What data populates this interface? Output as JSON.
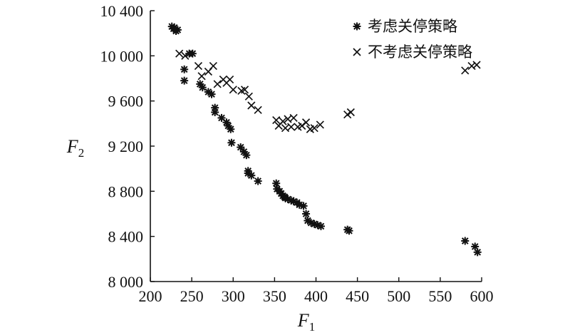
{
  "chart_data": {
    "type": "scatter",
    "xlabel": "F",
    "xlabel_sub": "1",
    "ylabel": "F",
    "ylabel_sub": "2",
    "xlim": [
      200,
      600
    ],
    "ylim": [
      8000,
      10400
    ],
    "x_ticks": [
      200,
      250,
      300,
      350,
      400,
      450,
      500,
      550,
      600
    ],
    "x_tick_labels": [
      "200",
      "250",
      "300",
      "350",
      "400",
      "450",
      "500",
      "550",
      "600"
    ],
    "y_ticks": [
      8000,
      8400,
      8800,
      9200,
      9600,
      10000,
      10400
    ],
    "y_tick_labels": [
      "8 000",
      "8 400",
      "8 800",
      "9 200",
      "9 600",
      "10 000",
      "10 400"
    ],
    "grid": false,
    "legend_position": "top-right",
    "series": [
      {
        "name": "考虑关停策略",
        "marker": "asterisk",
        "x": [
          226,
          228,
          229,
          231,
          233,
          241,
          241,
          247,
          251,
          260,
          263,
          270,
          274,
          278,
          278,
          286,
          292,
          294,
          297,
          298,
          309,
          313,
          316,
          318,
          318,
          322,
          330,
          352,
          353,
          356,
          358,
          360,
          362,
          363,
          366,
          370,
          373,
          377,
          380,
          385,
          388,
          390,
          394,
          398,
          402,
          406,
          438,
          440,
          580,
          592,
          595
        ],
        "y": [
          10260,
          10240,
          10250,
          10220,
          10230,
          9880,
          9780,
          10020,
          10020,
          9750,
          9720,
          9680,
          9660,
          9540,
          9500,
          9450,
          9410,
          9380,
          9350,
          9230,
          9190,
          9150,
          9120,
          8980,
          8960,
          8940,
          8890,
          8870,
          8820,
          8800,
          8780,
          8760,
          8750,
          8740,
          8730,
          8720,
          8710,
          8700,
          8680,
          8670,
          8600,
          8540,
          8520,
          8510,
          8500,
          8490,
          8460,
          8450,
          8360,
          8310,
          8260
        ]
      },
      {
        "name": "不考虑关停策略",
        "marker": "x",
        "x": [
          235,
          242,
          258,
          262,
          270,
          276,
          281,
          288,
          292,
          296,
          300,
          310,
          314,
          319,
          322,
          330,
          352,
          355,
          360,
          363,
          366,
          370,
          373,
          378,
          383,
          388,
          393,
          398,
          405,
          438,
          442,
          580,
          588,
          594
        ],
        "y": [
          10020,
          10000,
          9910,
          9820,
          9860,
          9910,
          9750,
          9790,
          9760,
          9790,
          9700,
          9690,
          9700,
          9640,
          9560,
          9520,
          9430,
          9380,
          9420,
          9360,
          9440,
          9370,
          9450,
          9370,
          9380,
          9410,
          9350,
          9360,
          9390,
          9480,
          9500,
          9870,
          9910,
          9920
        ]
      }
    ]
  }
}
